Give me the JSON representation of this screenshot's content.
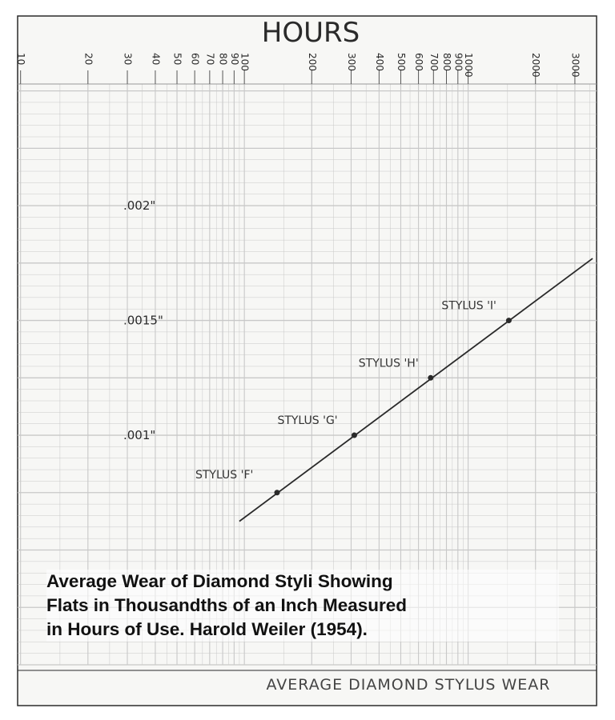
{
  "chart_data": {
    "type": "line",
    "title": "HOURS",
    "footer_label": "AVERAGE DIAMOND STYLUS WEAR",
    "x_scale": "log",
    "x_ticks": [
      10,
      20,
      30,
      40,
      50,
      60,
      70,
      80,
      90,
      100,
      200,
      300,
      400,
      500,
      600,
      700,
      800,
      900,
      1000,
      2000,
      3000
    ],
    "x_tick_labels": [
      "10",
      "20",
      "30",
      "40",
      "50",
      "60",
      "70",
      "80",
      "90",
      "100",
      "200",
      "300",
      "400",
      "500",
      "600",
      "700",
      "800",
      "900",
      "1000",
      "2000",
      "3000"
    ],
    "xlim": [
      9.7,
      3750
    ],
    "y_scale": "linear",
    "ylim": [
      0,
      0.00253
    ],
    "y_ticks": [
      0.001,
      0.0015,
      0.002
    ],
    "y_tick_labels": [
      ".001\"",
      ".0015\"",
      ".002\""
    ],
    "grid": true,
    "trend_line": {
      "x": [
        95,
        3600
      ],
      "y": [
        0.000625,
        0.00177
      ]
    },
    "points": [
      {
        "label": "STYLUS 'F'",
        "hours": 140,
        "wear": 0.00075
      },
      {
        "label": "STYLUS 'G'",
        "hours": 310,
        "wear": 0.001
      },
      {
        "label": "STYLUS 'H'",
        "hours": 680,
        "wear": 0.00125
      },
      {
        "label": "STYLUS 'I'",
        "hours": 1520,
        "wear": 0.0015
      }
    ],
    "colors": {
      "ink": "#2a2a2a",
      "grid": "#c8c8c8",
      "paper": "#f7f7f5"
    }
  },
  "caption": {
    "lines": [
      "Average Wear of Diamond Styli Showing",
      "Flats in Thousandths of an Inch Measured",
      "in Hours of Use. Harold Weiler (1954)."
    ]
  }
}
